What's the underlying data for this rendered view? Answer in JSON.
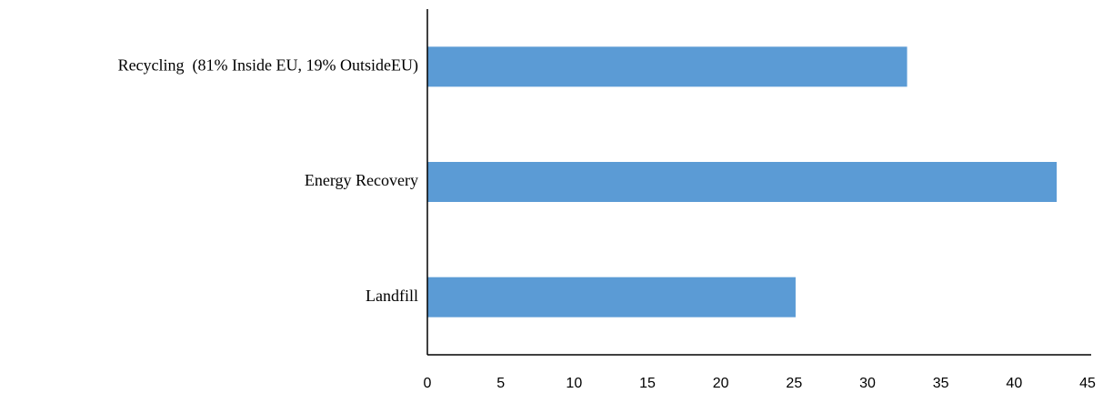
{
  "chart_data": {
    "type": "barh",
    "categories": [
      "Recycling  (81% Inside EU, 19% OutsideEU)",
      "Energy Recovery",
      "Landfill"
    ],
    "values": [
      32.7,
      42.9,
      25.1
    ],
    "color": "#5b9bd5",
    "xlim": [
      0,
      45
    ],
    "xticks": [
      0,
      5,
      10,
      15,
      20,
      25,
      30,
      35,
      40,
      45
    ]
  }
}
